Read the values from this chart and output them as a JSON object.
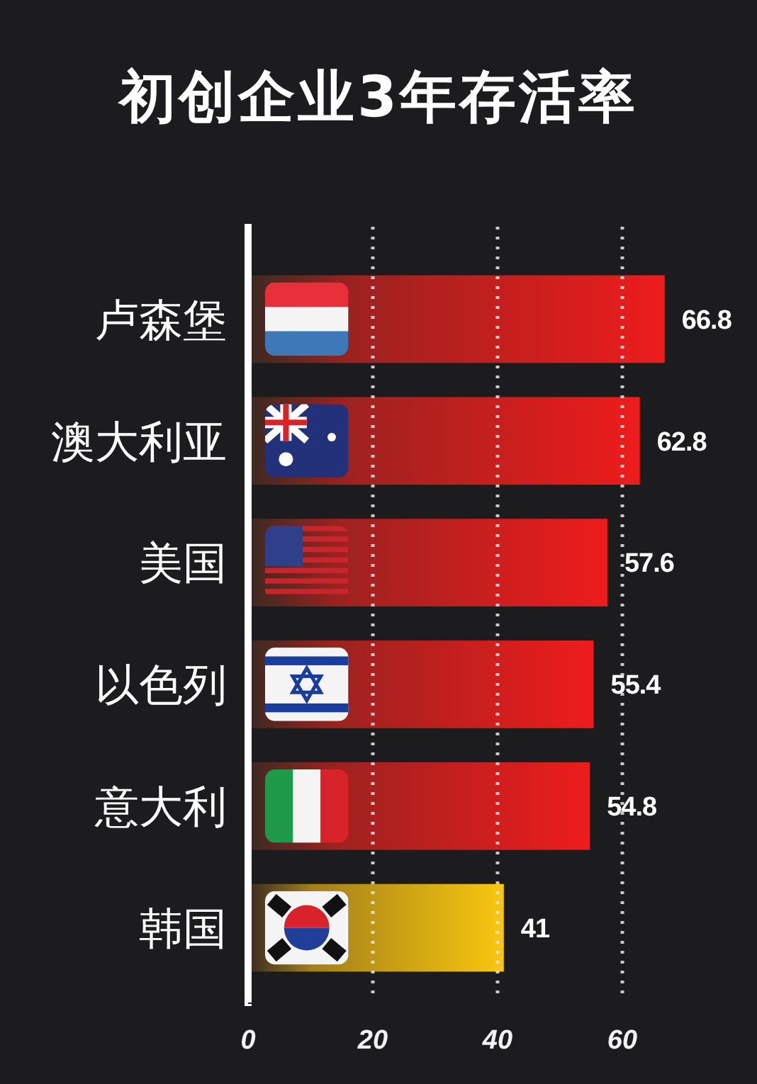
{
  "chart_data": {
    "type": "bar",
    "orientation": "horizontal",
    "title": "初创企业3年存活率",
    "categories": [
      "卢森堡",
      "澳大利亚",
      "美国",
      "以色列",
      "意大利",
      "韩国"
    ],
    "values": [
      66.8,
      62.8,
      57.6,
      55.4,
      54.8,
      41
    ],
    "colors": [
      "#ee1c1c",
      "#ee1c1c",
      "#ee1c1c",
      "#ee1c1c",
      "#ee1c1c",
      "#f9c710"
    ],
    "xlim": [
      0,
      75
    ],
    "xticks": [
      0,
      20,
      40,
      60
    ],
    "grid": "x",
    "data_labels": true
  }
}
